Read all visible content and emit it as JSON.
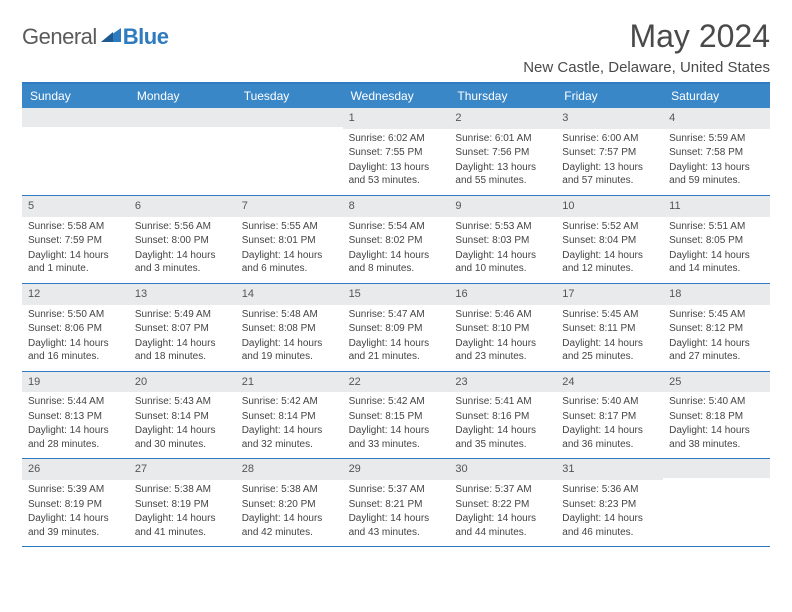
{
  "brand": {
    "general": "General",
    "blue": "Blue"
  },
  "title": "May 2024",
  "location": "New Castle, Delaware, United States",
  "colors": {
    "header_bg": "#3a87c8",
    "accent": "#2f7bbf",
    "daynum_bg": "#e9eaeb"
  },
  "weekdays": [
    "Sunday",
    "Monday",
    "Tuesday",
    "Wednesday",
    "Thursday",
    "Friday",
    "Saturday"
  ],
  "weeks": [
    [
      {
        "day": "",
        "sunrise": "",
        "sunset": "",
        "daylight": ""
      },
      {
        "day": "",
        "sunrise": "",
        "sunset": "",
        "daylight": ""
      },
      {
        "day": "",
        "sunrise": "",
        "sunset": "",
        "daylight": ""
      },
      {
        "day": "1",
        "sunrise": "Sunrise: 6:02 AM",
        "sunset": "Sunset: 7:55 PM",
        "daylight": "Daylight: 13 hours and 53 minutes."
      },
      {
        "day": "2",
        "sunrise": "Sunrise: 6:01 AM",
        "sunset": "Sunset: 7:56 PM",
        "daylight": "Daylight: 13 hours and 55 minutes."
      },
      {
        "day": "3",
        "sunrise": "Sunrise: 6:00 AM",
        "sunset": "Sunset: 7:57 PM",
        "daylight": "Daylight: 13 hours and 57 minutes."
      },
      {
        "day": "4",
        "sunrise": "Sunrise: 5:59 AM",
        "sunset": "Sunset: 7:58 PM",
        "daylight": "Daylight: 13 hours and 59 minutes."
      }
    ],
    [
      {
        "day": "5",
        "sunrise": "Sunrise: 5:58 AM",
        "sunset": "Sunset: 7:59 PM",
        "daylight": "Daylight: 14 hours and 1 minute."
      },
      {
        "day": "6",
        "sunrise": "Sunrise: 5:56 AM",
        "sunset": "Sunset: 8:00 PM",
        "daylight": "Daylight: 14 hours and 3 minutes."
      },
      {
        "day": "7",
        "sunrise": "Sunrise: 5:55 AM",
        "sunset": "Sunset: 8:01 PM",
        "daylight": "Daylight: 14 hours and 6 minutes."
      },
      {
        "day": "8",
        "sunrise": "Sunrise: 5:54 AM",
        "sunset": "Sunset: 8:02 PM",
        "daylight": "Daylight: 14 hours and 8 minutes."
      },
      {
        "day": "9",
        "sunrise": "Sunrise: 5:53 AM",
        "sunset": "Sunset: 8:03 PM",
        "daylight": "Daylight: 14 hours and 10 minutes."
      },
      {
        "day": "10",
        "sunrise": "Sunrise: 5:52 AM",
        "sunset": "Sunset: 8:04 PM",
        "daylight": "Daylight: 14 hours and 12 minutes."
      },
      {
        "day": "11",
        "sunrise": "Sunrise: 5:51 AM",
        "sunset": "Sunset: 8:05 PM",
        "daylight": "Daylight: 14 hours and 14 minutes."
      }
    ],
    [
      {
        "day": "12",
        "sunrise": "Sunrise: 5:50 AM",
        "sunset": "Sunset: 8:06 PM",
        "daylight": "Daylight: 14 hours and 16 minutes."
      },
      {
        "day": "13",
        "sunrise": "Sunrise: 5:49 AM",
        "sunset": "Sunset: 8:07 PM",
        "daylight": "Daylight: 14 hours and 18 minutes."
      },
      {
        "day": "14",
        "sunrise": "Sunrise: 5:48 AM",
        "sunset": "Sunset: 8:08 PM",
        "daylight": "Daylight: 14 hours and 19 minutes."
      },
      {
        "day": "15",
        "sunrise": "Sunrise: 5:47 AM",
        "sunset": "Sunset: 8:09 PM",
        "daylight": "Daylight: 14 hours and 21 minutes."
      },
      {
        "day": "16",
        "sunrise": "Sunrise: 5:46 AM",
        "sunset": "Sunset: 8:10 PM",
        "daylight": "Daylight: 14 hours and 23 minutes."
      },
      {
        "day": "17",
        "sunrise": "Sunrise: 5:45 AM",
        "sunset": "Sunset: 8:11 PM",
        "daylight": "Daylight: 14 hours and 25 minutes."
      },
      {
        "day": "18",
        "sunrise": "Sunrise: 5:45 AM",
        "sunset": "Sunset: 8:12 PM",
        "daylight": "Daylight: 14 hours and 27 minutes."
      }
    ],
    [
      {
        "day": "19",
        "sunrise": "Sunrise: 5:44 AM",
        "sunset": "Sunset: 8:13 PM",
        "daylight": "Daylight: 14 hours and 28 minutes."
      },
      {
        "day": "20",
        "sunrise": "Sunrise: 5:43 AM",
        "sunset": "Sunset: 8:14 PM",
        "daylight": "Daylight: 14 hours and 30 minutes."
      },
      {
        "day": "21",
        "sunrise": "Sunrise: 5:42 AM",
        "sunset": "Sunset: 8:14 PM",
        "daylight": "Daylight: 14 hours and 32 minutes."
      },
      {
        "day": "22",
        "sunrise": "Sunrise: 5:42 AM",
        "sunset": "Sunset: 8:15 PM",
        "daylight": "Daylight: 14 hours and 33 minutes."
      },
      {
        "day": "23",
        "sunrise": "Sunrise: 5:41 AM",
        "sunset": "Sunset: 8:16 PM",
        "daylight": "Daylight: 14 hours and 35 minutes."
      },
      {
        "day": "24",
        "sunrise": "Sunrise: 5:40 AM",
        "sunset": "Sunset: 8:17 PM",
        "daylight": "Daylight: 14 hours and 36 minutes."
      },
      {
        "day": "25",
        "sunrise": "Sunrise: 5:40 AM",
        "sunset": "Sunset: 8:18 PM",
        "daylight": "Daylight: 14 hours and 38 minutes."
      }
    ],
    [
      {
        "day": "26",
        "sunrise": "Sunrise: 5:39 AM",
        "sunset": "Sunset: 8:19 PM",
        "daylight": "Daylight: 14 hours and 39 minutes."
      },
      {
        "day": "27",
        "sunrise": "Sunrise: 5:38 AM",
        "sunset": "Sunset: 8:19 PM",
        "daylight": "Daylight: 14 hours and 41 minutes."
      },
      {
        "day": "28",
        "sunrise": "Sunrise: 5:38 AM",
        "sunset": "Sunset: 8:20 PM",
        "daylight": "Daylight: 14 hours and 42 minutes."
      },
      {
        "day": "29",
        "sunrise": "Sunrise: 5:37 AM",
        "sunset": "Sunset: 8:21 PM",
        "daylight": "Daylight: 14 hours and 43 minutes."
      },
      {
        "day": "30",
        "sunrise": "Sunrise: 5:37 AM",
        "sunset": "Sunset: 8:22 PM",
        "daylight": "Daylight: 14 hours and 44 minutes."
      },
      {
        "day": "31",
        "sunrise": "Sunrise: 5:36 AM",
        "sunset": "Sunset: 8:23 PM",
        "daylight": "Daylight: 14 hours and 46 minutes."
      },
      {
        "day": "",
        "sunrise": "",
        "sunset": "",
        "daylight": ""
      }
    ]
  ]
}
